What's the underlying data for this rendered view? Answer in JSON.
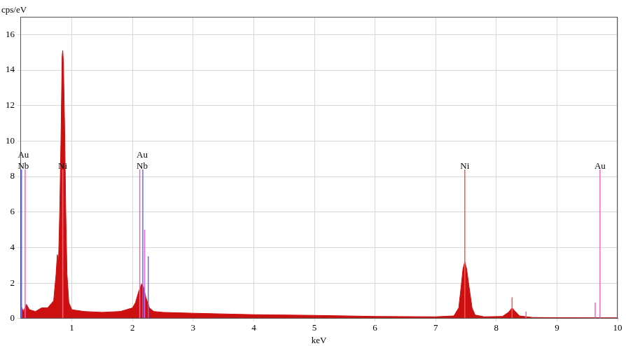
{
  "chart_data": {
    "type": "line",
    "x_label": "keV",
    "y_label": "cps/eV",
    "x": [
      0.15,
      0.2,
      0.25,
      0.3,
      0.4,
      0.5,
      0.6,
      0.7,
      0.74,
      0.76,
      0.78,
      0.8,
      0.82,
      0.84,
      0.85,
      0.86,
      0.88,
      0.9,
      0.92,
      0.95,
      1.0,
      1.2,
      1.5,
      1.8,
      2.0,
      2.05,
      2.1,
      2.15,
      2.18,
      2.22,
      2.28,
      2.35,
      2.5,
      3.0,
      4.0,
      5.0,
      6.0,
      7.0,
      7.3,
      7.38,
      7.42,
      7.45,
      7.48,
      7.51,
      7.55,
      7.6,
      7.65,
      7.8,
      8.1,
      8.2,
      8.26,
      8.3,
      8.38,
      8.6,
      9.0,
      10.0
    ],
    "values": [
      0.8,
      0.4,
      0.8,
      0.5,
      0.4,
      0.6,
      0.6,
      1.0,
      2.5,
      3.6,
      3.2,
      6.0,
      10.0,
      14.8,
      15.1,
      14.5,
      11.0,
      6.0,
      2.5,
      0.9,
      0.5,
      0.4,
      0.35,
      0.4,
      0.6,
      0.9,
      1.5,
      1.95,
      1.8,
      1.2,
      0.6,
      0.4,
      0.35,
      0.3,
      0.22,
      0.18,
      0.12,
      0.1,
      0.15,
      0.6,
      1.8,
      2.8,
      3.2,
      2.8,
      1.8,
      0.6,
      0.2,
      0.1,
      0.12,
      0.35,
      0.6,
      0.45,
      0.15,
      0.06,
      0.05,
      0.04
    ],
    "color": "#cc1010",
    "lines": [
      {
        "x": 0.17,
        "height": 8.4,
        "color": "#6a6aff"
      },
      {
        "x": 0.23,
        "height": 8.4,
        "color": "#ee66cc"
      },
      {
        "x": 0.85,
        "height": 8.4,
        "color": "#ff6688"
      },
      {
        "x": 2.12,
        "height": 8.4,
        "color": "#ee66cc"
      },
      {
        "x": 2.17,
        "height": 8.4,
        "color": "#6a6aff"
      },
      {
        "x": 2.2,
        "height": 5.0,
        "color": "#ee66cc"
      },
      {
        "x": 2.26,
        "height": 3.5,
        "color": "#6a6aff"
      },
      {
        "x": 7.48,
        "height": 8.4,
        "color": "#ff5555"
      },
      {
        "x": 8.26,
        "height": 1.2,
        "color": "#ff5555"
      },
      {
        "x": 8.49,
        "height": 0.4,
        "color": "#ee66cc"
      },
      {
        "x": 9.63,
        "height": 0.9,
        "color": "#ee66cc"
      },
      {
        "x": 9.71,
        "height": 8.4,
        "color": "#ee66cc"
      }
    ],
    "element_labels": [
      {
        "x": 0.2,
        "labels": [
          "Au",
          "Nb"
        ]
      },
      {
        "x": 0.85,
        "labels": [
          "Ni"
        ]
      },
      {
        "x": 2.16,
        "labels": [
          "Au",
          "Nb"
        ]
      },
      {
        "x": 7.48,
        "labels": [
          "Ni"
        ]
      },
      {
        "x": 9.71,
        "labels": [
          "Au"
        ]
      }
    ],
    "xlim": [
      0.15,
      10
    ],
    "xticks": [
      1,
      2,
      3,
      4,
      5,
      6,
      7,
      8,
      9,
      10
    ],
    "ylim": [
      0,
      17
    ],
    "yticks": [
      0,
      2,
      4,
      6,
      8,
      10,
      12,
      14,
      16
    ],
    "grid": true
  }
}
